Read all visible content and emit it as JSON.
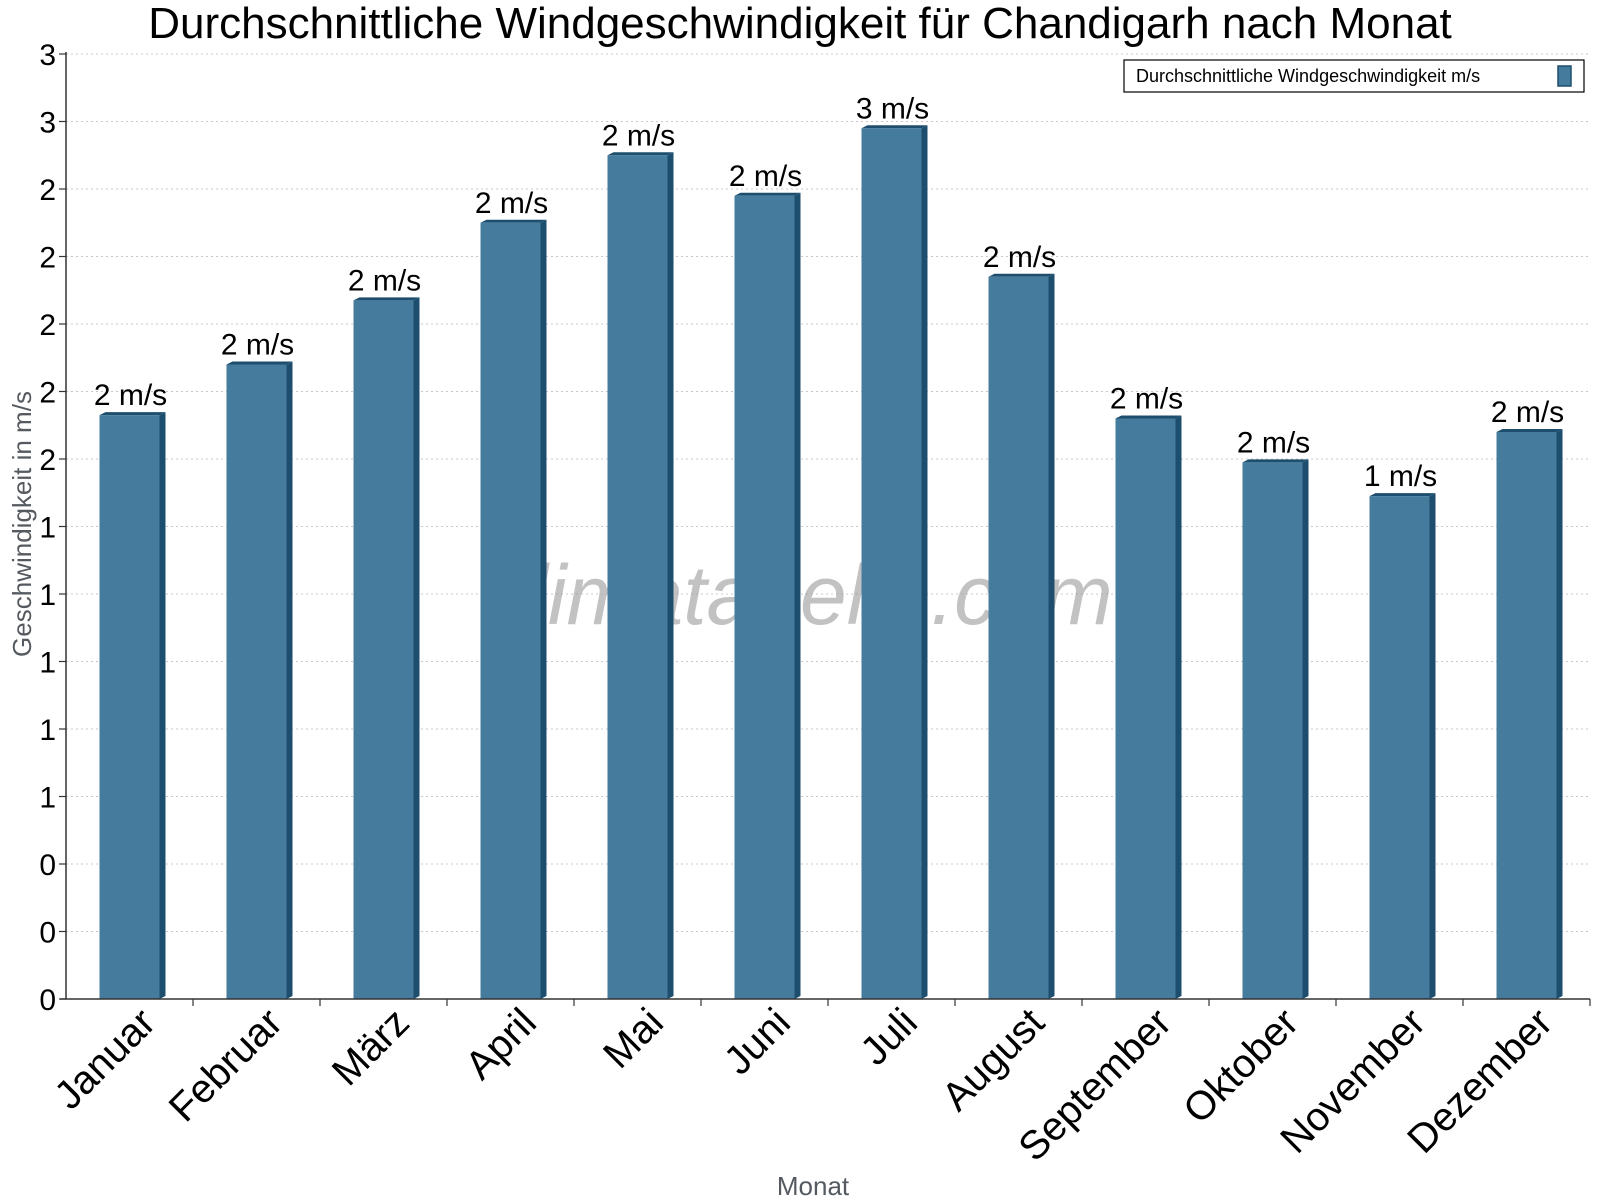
{
  "watermark": "klimatabelle.com",
  "chart_data": {
    "type": "bar",
    "title": "Durchschnittliche Windgeschwindigkeit für Chandigarh nach Monat",
    "xlabel": "Monat",
    "ylabel": "Geschwindigkeit in m/s",
    "categories": [
      "Januar",
      "Februar",
      "März",
      "April",
      "Mai",
      "Juni",
      "Juli",
      "August",
      "September",
      "Oktober",
      "November",
      "Dezember"
    ],
    "series": [
      {
        "name": "Durchschnittliche Windgeschwindigkeit m/s",
        "values": [
          1.73,
          1.88,
          2.07,
          2.3,
          2.5,
          2.38,
          2.58,
          2.14,
          1.72,
          1.59,
          1.49,
          1.68
        ],
        "data_labels": [
          "2 m/s",
          "2 m/s",
          "2 m/s",
          "2 m/s",
          "2 m/s",
          "2 m/s",
          "3 m/s",
          "2 m/s",
          "2 m/s",
          "2 m/s",
          "1 m/s",
          "2 m/s"
        ]
      }
    ],
    "ylim": [
      0,
      2.8
    ],
    "yticks": [
      0,
      0.2,
      0.4,
      0.6,
      0.8,
      1.0,
      1.2,
      1.4,
      1.6,
      1.8,
      2.0,
      2.2,
      2.4,
      2.6,
      2.8
    ],
    "ytick_labels": [
      "0",
      "0",
      "0",
      "1",
      "1",
      "1",
      "1",
      "1",
      "2",
      "2",
      "2",
      "2",
      "2",
      "3",
      "3"
    ],
    "grid": true,
    "legend_position": "top-right",
    "colors": {
      "bar_front": "#457b9d",
      "bar_side": "#1d4e6e",
      "bar_top": "#1d4e6e",
      "grid": "#c8c8c8",
      "axis": "#333333"
    }
  }
}
